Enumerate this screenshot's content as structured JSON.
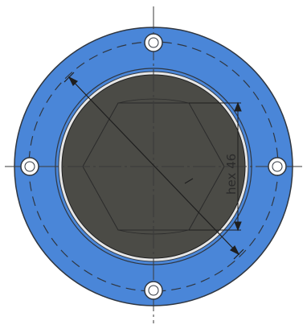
{
  "drawing": {
    "dimension_label": "hex 46",
    "colors": {
      "flange": "#4a86d8",
      "flange_edge": "#2f3640",
      "core": "#4b4b46",
      "outline": "#1f1f1f",
      "centerline": "#3a3a3a",
      "bolt_fill": "#ffffff"
    }
  }
}
